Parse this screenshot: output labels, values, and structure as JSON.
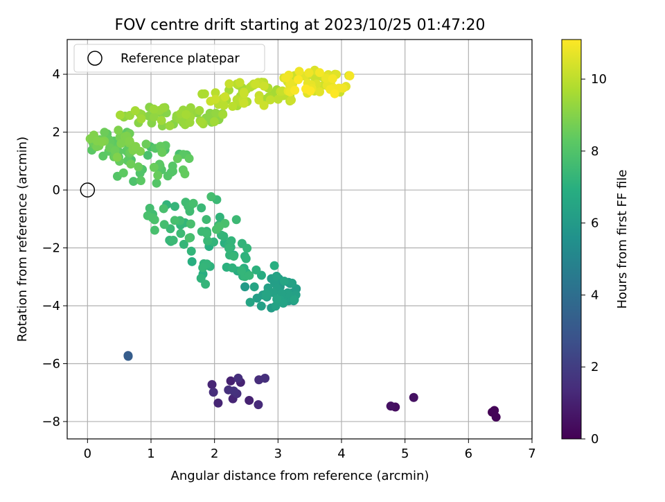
{
  "chart_data": {
    "type": "scatter",
    "title": "FOV centre drift starting at 2023/10/25 01:47:20",
    "xlabel": "Angular distance from reference (arcmin)",
    "ylabel": "Rotation from reference (arcmin)",
    "xlim": [
      -0.32,
      7.0
    ],
    "ylim": [
      -8.6,
      5.2
    ],
    "xticks": [
      0,
      1,
      2,
      3,
      4,
      5,
      6,
      7
    ],
    "yticks": [
      -8,
      -6,
      -4,
      -2,
      0,
      2,
      4
    ],
    "grid": true,
    "legend": {
      "placement": "top-left",
      "entries": [
        "Reference platepar"
      ]
    },
    "reference_point": {
      "x": 0,
      "y": 0,
      "label": "Reference platepar"
    },
    "colorbar": {
      "label": "Hours from first FF file",
      "colormap": "viridis",
      "range": [
        0,
        11.1
      ],
      "ticks": [
        0,
        2,
        4,
        6,
        8,
        10
      ]
    },
    "clusters": [
      {
        "cx": 0.62,
        "cy": -5.68,
        "rx": 0.06,
        "ry": 0.1,
        "n": 2,
        "t0": 3.0,
        "t1": 3.3
      },
      {
        "cx": 2.45,
        "cy": -6.95,
        "rx": 0.6,
        "ry": 0.6,
        "n": 14,
        "t0": 0.9,
        "t1": 1.6
      },
      {
        "cx": 4.8,
        "cy": -7.45,
        "rx": 0.12,
        "ry": 0.1,
        "n": 2,
        "t0": 0.3,
        "t1": 0.5
      },
      {
        "cx": 5.14,
        "cy": -7.15,
        "rx": 0.02,
        "ry": 0.02,
        "n": 1,
        "t0": 0.5,
        "t1": 0.5
      },
      {
        "cx": 6.52,
        "cy": -7.75,
        "rx": 0.2,
        "ry": 0.22,
        "n": 3,
        "t0": 0.05,
        "t1": 0.2
      },
      {
        "cx": 2.2,
        "cy": -2.6,
        "rx": 0.75,
        "ry": 0.9,
        "n": 35,
        "t0": 6.8,
        "t1": 7.4
      },
      {
        "cx": 2.9,
        "cy": -3.55,
        "rx": 0.45,
        "ry": 0.6,
        "n": 40,
        "t0": 5.9,
        "t1": 6.5
      },
      {
        "cx": 1.65,
        "cy": -1.0,
        "rx": 0.75,
        "ry": 0.9,
        "n": 45,
        "t0": 7.2,
        "t1": 7.9
      },
      {
        "cx": 0.95,
        "cy": 0.9,
        "rx": 0.7,
        "ry": 0.7,
        "n": 45,
        "t0": 7.8,
        "t1": 8.6
      },
      {
        "cx": 0.45,
        "cy": 1.6,
        "rx": 0.45,
        "ry": 0.5,
        "n": 50,
        "t0": 8.2,
        "t1": 9.0
      },
      {
        "cx": 1.35,
        "cy": 2.55,
        "rx": 0.85,
        "ry": 0.35,
        "n": 55,
        "t0": 9.0,
        "t1": 9.6
      },
      {
        "cx": 2.55,
        "cy": 3.3,
        "rx": 0.75,
        "ry": 0.45,
        "n": 60,
        "t0": 9.5,
        "t1": 10.3
      },
      {
        "cx": 3.6,
        "cy": 3.7,
        "rx": 0.65,
        "ry": 0.45,
        "n": 55,
        "t0": 10.2,
        "t1": 11.1
      }
    ]
  }
}
